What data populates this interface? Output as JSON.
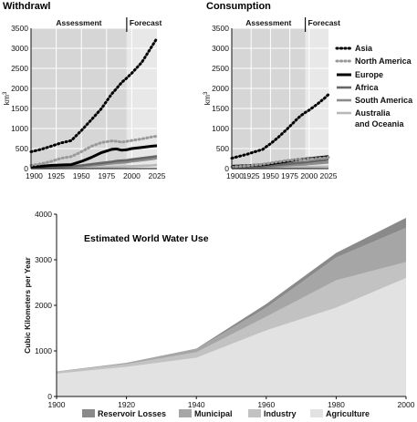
{
  "charts": {
    "withdrawal": {
      "title": "Withdrawl",
      "ylabel": "km",
      "ylabel_sup": "3",
      "assessment_label": "Assessment",
      "forecast_label": "Forecast"
    },
    "consumption": {
      "title": "Consumption",
      "ylabel": "km",
      "ylabel_sup": "3",
      "assessment_label": "Assessment",
      "forecast_label": "Forecast"
    },
    "world": {
      "title": "Estimated World Water Use",
      "ylabel": "Cubic Kilometers per Year"
    }
  },
  "colors": {
    "assessment_bg": "#d6d6d6",
    "forecast_bg": "#e8e8e8",
    "gridline": "#ffffff",
    "asia": "#000000",
    "north_america": "#999999",
    "europe": "#000000",
    "africa": "#666666",
    "south_america": "#8c8c8c",
    "australia_oceania": "#b8b8b8",
    "reservoir_losses": "#8a8a8a",
    "municipal": "#a6a6a6",
    "industry": "#c2c2c2",
    "agriculture": "#e2e2e2"
  },
  "chart_data": [
    {
      "type": "line",
      "title": "Withdrawl",
      "ylabel": "km3",
      "xlim": [
        1900,
        2025
      ],
      "ylim": [
        0,
        3500
      ],
      "x_ticks": [
        1900,
        1925,
        1950,
        1975,
        2000,
        2025
      ],
      "y_ticks": [
        0,
        500,
        1000,
        1500,
        2000,
        2500,
        3000,
        3500
      ],
      "assessment_range": [
        1900,
        1995
      ],
      "forecast_range": [
        1995,
        2025
      ],
      "x": [
        1900,
        1910,
        1920,
        1930,
        1940,
        1950,
        1960,
        1970,
        1980,
        1985,
        1990,
        1995,
        2000,
        2010,
        2020,
        2025
      ],
      "series": [
        {
          "name": "Asia",
          "style": "dotted",
          "values": [
            420,
            480,
            560,
            640,
            700,
            950,
            1220,
            1500,
            1860,
            2000,
            2150,
            2260,
            2380,
            2650,
            3050,
            3250
          ]
        },
        {
          "name": "North America",
          "style": "dotted",
          "values": [
            80,
            120,
            180,
            260,
            300,
            420,
            560,
            650,
            690,
            680,
            660,
            680,
            700,
            740,
            790,
            810
          ]
        },
        {
          "name": "Europe",
          "style": "solid",
          "values": [
            50,
            60,
            80,
            90,
            100,
            180,
            280,
            400,
            480,
            490,
            460,
            470,
            500,
            530,
            560,
            570
          ]
        },
        {
          "name": "Africa",
          "style": "solid",
          "values": [
            30,
            35,
            40,
            50,
            60,
            80,
            110,
            140,
            170,
            190,
            200,
            210,
            230,
            260,
            290,
            310
          ]
        },
        {
          "name": "South America",
          "style": "solid",
          "values": [
            20,
            25,
            30,
            40,
            50,
            60,
            80,
            100,
            130,
            140,
            150,
            160,
            180,
            210,
            240,
            260
          ]
        },
        {
          "name": "Australia and Oceania",
          "style": "solid",
          "values": [
            10,
            12,
            15,
            18,
            20,
            22,
            28,
            34,
            40,
            45,
            50,
            55,
            60,
            70,
            80,
            90
          ]
        }
      ]
    },
    {
      "type": "line",
      "title": "Consumption",
      "ylabel": "km3",
      "xlim": [
        1900,
        2025
      ],
      "ylim": [
        0,
        3500
      ],
      "x_ticks": [
        1900,
        1925,
        1950,
        1975,
        2000,
        2025
      ],
      "y_ticks": [
        0,
        500,
        1000,
        1500,
        2000,
        2500,
        3000,
        3500
      ],
      "assessment_range": [
        1900,
        1995
      ],
      "forecast_range": [
        1995,
        2025
      ],
      "x": [
        1900,
        1910,
        1920,
        1930,
        1940,
        1950,
        1960,
        1970,
        1980,
        1985,
        1990,
        1995,
        2000,
        2010,
        2020,
        2025
      ],
      "series": [
        {
          "name": "Asia",
          "style": "dotted",
          "values": [
            260,
            310,
            360,
            420,
            480,
            620,
            780,
            960,
            1150,
            1250,
            1330,
            1400,
            1460,
            1600,
            1760,
            1850
          ]
        },
        {
          "name": "North America",
          "style": "dotted",
          "values": [
            40,
            55,
            70,
            90,
            110,
            140,
            170,
            200,
            220,
            225,
            230,
            235,
            240,
            255,
            270,
            280
          ]
        },
        {
          "name": "Europe",
          "style": "solid",
          "values": [
            60,
            65,
            75,
            85,
            95,
            120,
            150,
            180,
            210,
            220,
            230,
            240,
            250,
            270,
            290,
            300
          ]
        },
        {
          "name": "Africa",
          "style": "solid",
          "values": [
            30,
            35,
            40,
            50,
            60,
            75,
            95,
            115,
            135,
            145,
            150,
            160,
            170,
            190,
            210,
            225
          ]
        },
        {
          "name": "South America",
          "style": "solid",
          "values": [
            20,
            25,
            30,
            35,
            40,
            50,
            60,
            75,
            90,
            95,
            100,
            105,
            115,
            130,
            145,
            155
          ]
        },
        {
          "name": "Australia and Oceania",
          "style": "solid",
          "values": [
            10,
            12,
            14,
            16,
            18,
            20,
            24,
            28,
            32,
            34,
            36,
            38,
            40,
            44,
            48,
            50
          ]
        }
      ]
    },
    {
      "type": "area",
      "stacked": true,
      "title": "Estimated World Water Use",
      "ylabel": "Cubic Kilometers per Year",
      "xlim": [
        1900,
        2000
      ],
      "ylim": [
        0,
        4000
      ],
      "x_ticks": [
        1900,
        1920,
        1940,
        1960,
        1980,
        2000
      ],
      "y_ticks": [
        0,
        1000,
        2000,
        3000,
        4000
      ],
      "x": [
        1900,
        1920,
        1940,
        1960,
        1980,
        2000
      ],
      "series": [
        {
          "name": "Agriculture",
          "values": [
            500,
            650,
            850,
            1450,
            1950,
            2600
          ]
        },
        {
          "name": "Industry",
          "values": [
            40,
            60,
            120,
            300,
            600,
            350
          ]
        },
        {
          "name": "Municipal",
          "values": [
            10,
            30,
            70,
            200,
            500,
            750
          ]
        },
        {
          "name": "Reservoir Losses",
          "values": [
            0,
            0,
            10,
            80,
            100,
            220
          ]
        }
      ],
      "legend_order": [
        "Reservoir Losses",
        "Municipal",
        "Industry",
        "Agriculture"
      ],
      "legend": "bottom"
    }
  ]
}
